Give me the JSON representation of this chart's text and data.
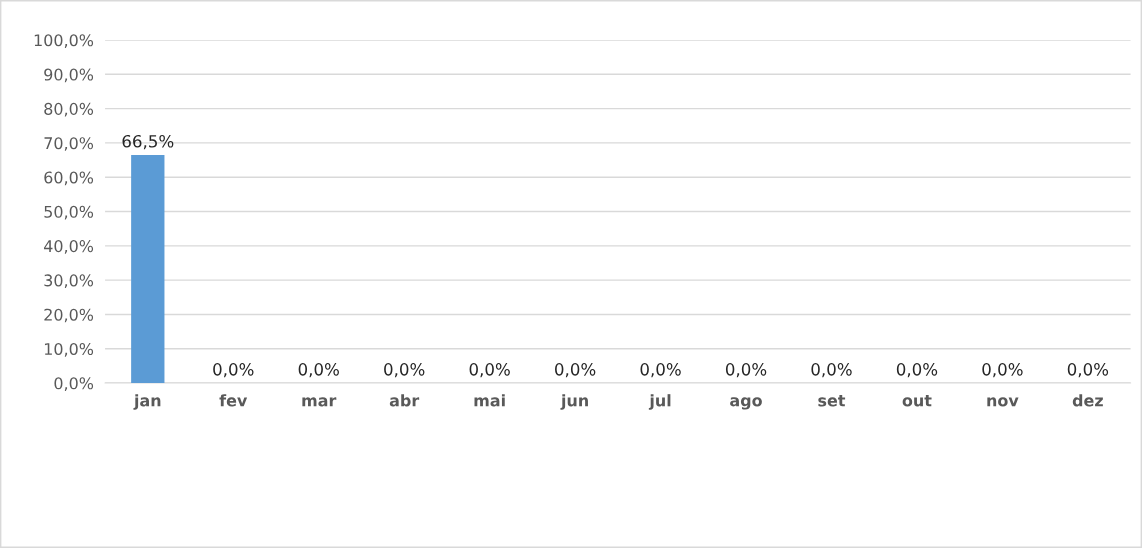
{
  "chart_data": {
    "type": "bar",
    "categories": [
      "jan",
      "fev",
      "mar",
      "abr",
      "mai",
      "jun",
      "jul",
      "ago",
      "set",
      "out",
      "nov",
      "dez"
    ],
    "values": [
      66.5,
      0.0,
      0.0,
      0.0,
      0.0,
      0.0,
      0.0,
      0.0,
      0.0,
      0.0,
      0.0,
      0.0
    ],
    "value_labels": [
      "66,5%",
      "0,0%",
      "0,0%",
      "0,0%",
      "0,0%",
      "0,0%",
      "0,0%",
      "0,0%",
      "0,0%",
      "0,0%",
      "0,0%",
      "0,0%"
    ],
    "color": "#5b9bd5",
    "ylim": [
      0,
      100
    ],
    "yticks": [
      {
        "value": 0,
        "label": "0,0%"
      },
      {
        "value": 10,
        "label": "10,0%"
      },
      {
        "value": 20,
        "label": "20,0%"
      },
      {
        "value": 30,
        "label": "30,0%"
      },
      {
        "value": 40,
        "label": "40,0%"
      },
      {
        "value": 50,
        "label": "50,0%"
      },
      {
        "value": 60,
        "label": "60,0%"
      },
      {
        "value": 70,
        "label": "70,0%"
      },
      {
        "value": 80,
        "label": "80,0%"
      },
      {
        "value": 90,
        "label": "90,0%"
      },
      {
        "value": 100,
        "label": "100,0%"
      }
    ],
    "grid": "y"
  }
}
